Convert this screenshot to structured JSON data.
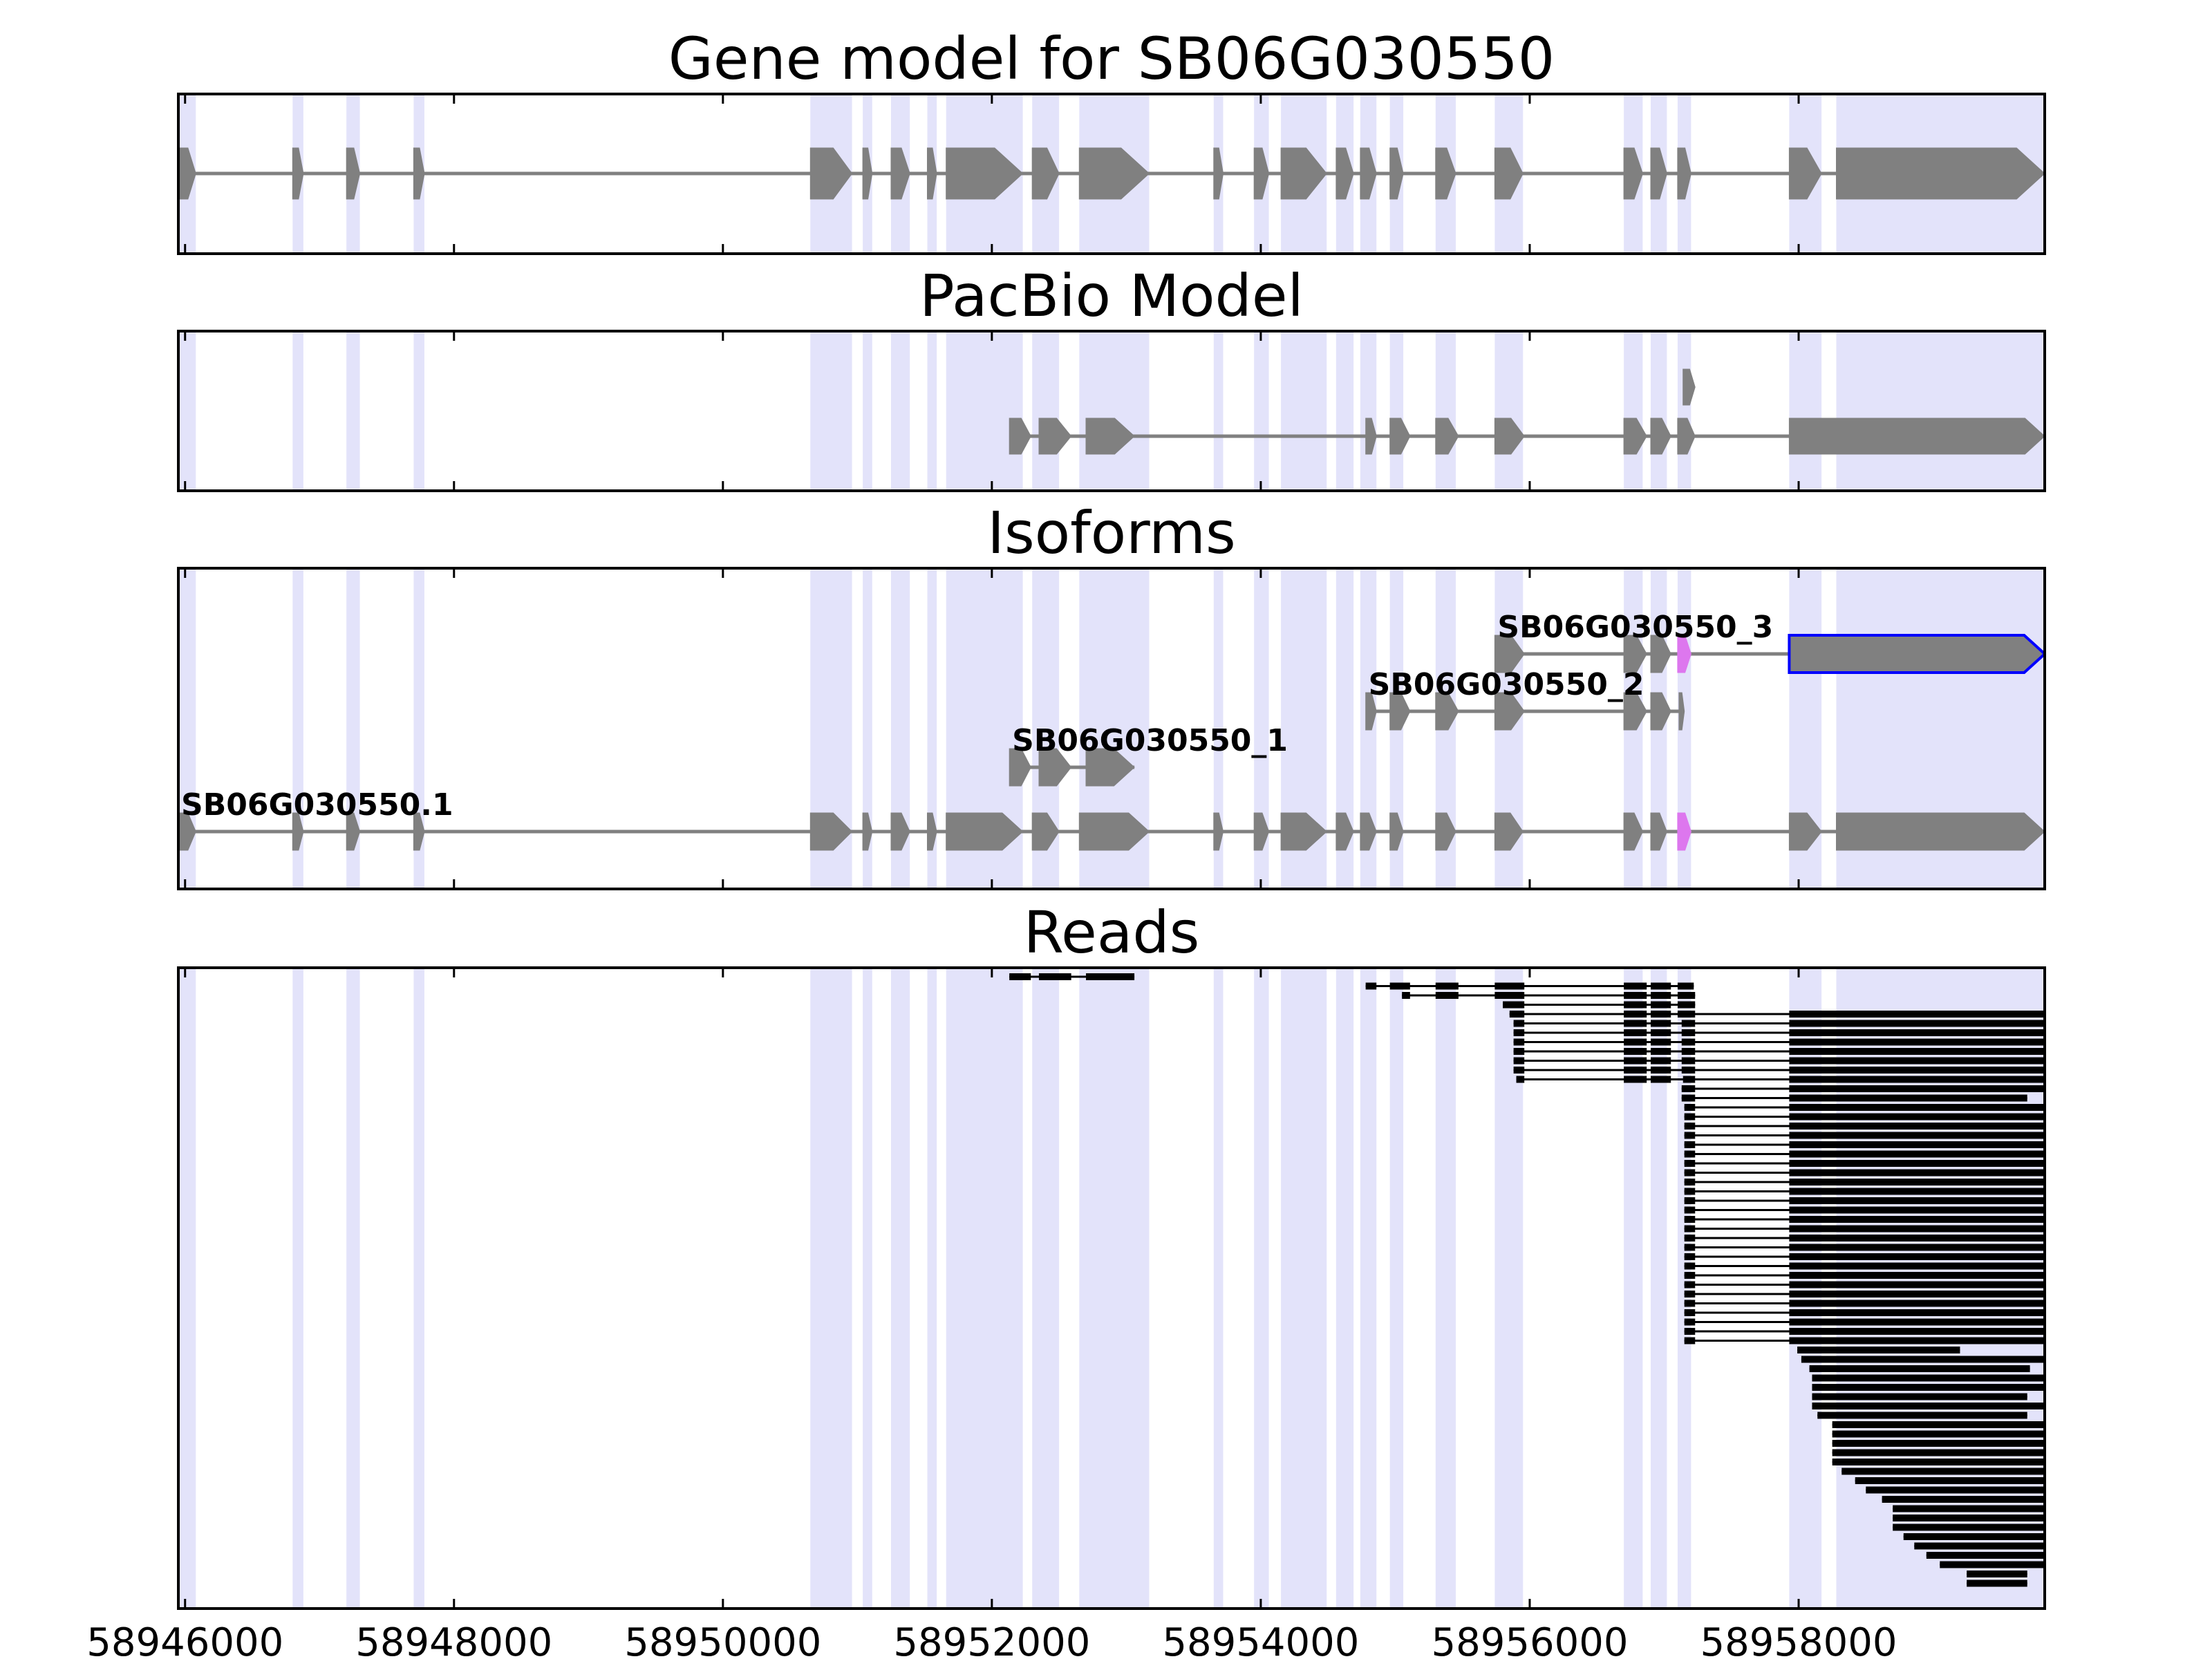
{
  "chart_data": {
    "type": "gene-track",
    "x_range": [
      58945950,
      58959830
    ],
    "x_ticks": [
      58946000,
      58948000,
      58950000,
      58952000,
      58954000,
      58956000,
      58958000
    ],
    "x_tick_labels": [
      "58946000",
      "58948000",
      "58950000",
      "58952000",
      "58954000",
      "58956000",
      "58958000"
    ],
    "shaded_regions": [
      [
        58945950,
        58946080
      ],
      [
        58946800,
        58946880
      ],
      [
        58947200,
        58947300
      ],
      [
        58947700,
        58947780
      ],
      [
        58950650,
        58950960
      ],
      [
        58951040,
        58951110
      ],
      [
        58951250,
        58951390
      ],
      [
        58951520,
        58951590
      ],
      [
        58951660,
        58952230
      ],
      [
        58952300,
        58952500
      ],
      [
        58952650,
        58953170
      ],
      [
        58953650,
        58953720
      ],
      [
        58953950,
        58954060
      ],
      [
        58954150,
        58954490
      ],
      [
        58954560,
        58954690
      ],
      [
        58954740,
        58954860
      ],
      [
        58954960,
        58955060
      ],
      [
        58955300,
        58955450
      ],
      [
        58955740,
        58955950
      ],
      [
        58956700,
        58956840
      ],
      [
        58956900,
        58957020
      ],
      [
        58957100,
        58957200
      ],
      [
        58957930,
        58958170
      ],
      [
        58958280,
        58959830
      ]
    ],
    "panels": [
      {
        "title": "Gene model for SB06G030550",
        "tracks": [
          {
            "start": 58945950,
            "end": 58959830,
            "color": "#808080",
            "exons": [
              [
                58945950,
                58946080
              ],
              [
                58946800,
                58946880
              ],
              [
                58947200,
                58947300
              ],
              [
                58947700,
                58947780
              ],
              [
                58950650,
                58950960
              ],
              [
                58951040,
                58951110
              ],
              [
                58951250,
                58951390
              ],
              [
                58951520,
                58951590
              ],
              [
                58951660,
                58952230
              ],
              [
                58952300,
                58952500
              ],
              [
                58952650,
                58953170
              ],
              [
                58953650,
                58953720
              ],
              [
                58953950,
                58954060
              ],
              [
                58954150,
                58954490
              ],
              [
                58954560,
                58954690
              ],
              [
                58954740,
                58954860
              ],
              [
                58954960,
                58955060
              ],
              [
                58955300,
                58955450
              ],
              [
                58955740,
                58955950
              ],
              [
                58956700,
                58956840
              ],
              [
                58956900,
                58957020
              ],
              [
                58957100,
                58957200
              ],
              [
                58957930,
                58958170
              ],
              [
                58958280,
                58959830
              ]
            ]
          }
        ]
      },
      {
        "title": "PacBio Model",
        "tracks": [
          {
            "start": 58952130,
            "end": 58959830,
            "color": "#808080",
            "exons": [
              [
                58952130,
                58952290
              ],
              [
                58952350,
                58952590
              ],
              [
                58952700,
                58953060
              ],
              [
                58954780,
                58954860
              ],
              [
                58954960,
                58955110
              ],
              [
                58955300,
                58955470
              ],
              [
                58955740,
                58955960
              ],
              [
                58956700,
                58956870
              ],
              [
                58956900,
                58957050
              ],
              [
                58957100,
                58957230
              ],
              [
                58957930,
                58959830
              ]
            ]
          }
        ]
      },
      {
        "title": "Isoforms",
        "isoforms": [
          {
            "label": "SB06G030550.1",
            "color": "#808080",
            "exons": [
              [
                58945950,
                58946080
              ],
              [
                58946800,
                58946880
              ],
              [
                58947200,
                58947300
              ],
              [
                58947700,
                58947780
              ],
              [
                58950650,
                58950960
              ],
              [
                58951040,
                58951110
              ],
              [
                58951250,
                58951390
              ],
              [
                58951520,
                58951590
              ],
              [
                58951660,
                58952230
              ],
              [
                58952300,
                58952500
              ],
              [
                58952650,
                58953170
              ],
              [
                58953650,
                58953720
              ],
              [
                58953950,
                58954060
              ],
              [
                58954150,
                58954490
              ],
              [
                58954560,
                58954690
              ],
              [
                58954740,
                58954860
              ],
              [
                58954960,
                58955060
              ],
              [
                58955300,
                58955450
              ],
              [
                58955740,
                58955950
              ],
              [
                58956700,
                58956840
              ],
              [
                58956900,
                58957020
              ],
              [
                58957100,
                58957200
              ],
              [
                58957930,
                58958170
              ],
              [
                58958280,
                58959830
              ]
            ],
            "highlight_exon": 21
          },
          {
            "label": "SB06G030550_1",
            "color": "#808080",
            "exons": [
              [
                58952130,
                58952290
              ],
              [
                58952350,
                58952590
              ],
              [
                58952700,
                58953060
              ]
            ]
          },
          {
            "label": "SB06G030550_2",
            "color": "#808080",
            "exons": [
              [
                58954780,
                58954860
              ],
              [
                58954960,
                58955110
              ],
              [
                58955300,
                58955470
              ],
              [
                58955740,
                58955960
              ],
              [
                58956700,
                58956870
              ],
              [
                58956900,
                58957050
              ],
              [
                58957110,
                58957150
              ]
            ]
          },
          {
            "label": "SB06G030550_3",
            "color": "#808080",
            "outline": "#0000ff",
            "exons": [
              [
                58955740,
                58955960
              ],
              [
                58956700,
                58956870
              ],
              [
                58956900,
                58957050
              ],
              [
                58957100,
                58957200
              ],
              [
                58957930,
                58959830
              ]
            ],
            "highlight_exon": 3,
            "outlined_exon": 4
          }
        ]
      },
      {
        "title": "Reads",
        "read_groups": [
          {
            "count": 1,
            "exons": [
              [
                58952130,
                58952290
              ],
              [
                58952350,
                58952590
              ],
              [
                58952700,
                58953060
              ]
            ]
          },
          {
            "count": 1,
            "exons": [
              [
                58954780,
                58954860
              ],
              [
                58954960,
                58955110
              ],
              [
                58955300,
                58955470
              ],
              [
                58955740,
                58955960
              ],
              [
                58956700,
                58956870
              ],
              [
                58956900,
                58957050
              ],
              [
                58957100,
                58957220
              ]
            ]
          },
          {
            "count": 1,
            "exons": [
              [
                58955050,
                58955110
              ],
              [
                58955300,
                58955470
              ],
              [
                58955740,
                58955960
              ],
              [
                58956700,
                58956870
              ],
              [
                58956900,
                58957050
              ],
              [
                58957100,
                58957230
              ]
            ]
          },
          {
            "count": 1,
            "exons": [
              [
                58955800,
                58955960
              ],
              [
                58956700,
                58956870
              ],
              [
                58956900,
                58957050
              ],
              [
                58957100,
                58957230
              ]
            ]
          },
          {
            "count": 1,
            "exons": [
              [
                58955850,
                58955960
              ],
              [
                58956700,
                58956870
              ],
              [
                58956900,
                58957050
              ],
              [
                58957100,
                58957230
              ],
              [
                58957930,
                58959830
              ]
            ]
          },
          {
            "count": 6,
            "exons": [
              [
                58955880,
                58955960
              ],
              [
                58956700,
                58956870
              ],
              [
                58956900,
                58957050
              ],
              [
                58957130,
                58957230
              ],
              [
                58957930,
                58959830
              ]
            ]
          },
          {
            "count": 1,
            "exons": [
              [
                58955900,
                58955960
              ],
              [
                58956700,
                58956870
              ],
              [
                58956900,
                58957050
              ],
              [
                58957140,
                58957230
              ],
              [
                58957930,
                58959830
              ]
            ]
          },
          {
            "count": 1,
            "exons": [
              [
                58957130,
                58957230
              ],
              [
                58957930,
                58959830
              ]
            ]
          },
          {
            "count": 1,
            "exons": [
              [
                58957130,
                58957230
              ],
              [
                58957930,
                58959700
              ]
            ]
          },
          {
            "count": 26,
            "exons": [
              [
                58957150,
                58957230
              ],
              [
                58957930,
                58959830
              ]
            ]
          },
          {
            "count": 1,
            "exons": [
              [
                58957990,
                58959200
              ]
            ]
          },
          {
            "count": 1,
            "exons": [
              [
                58958020,
                58959830
              ]
            ]
          },
          {
            "count": 1,
            "exons": [
              [
                58958080,
                58959720
              ]
            ]
          },
          {
            "count": 2,
            "exons": [
              [
                58958100,
                58959830
              ]
            ]
          },
          {
            "count": 1,
            "exons": [
              [
                58958100,
                58959700
              ]
            ]
          },
          {
            "count": 1,
            "exons": [
              [
                58958100,
                58959830
              ]
            ]
          },
          {
            "count": 1,
            "exons": [
              [
                58958140,
                58959700
              ]
            ]
          },
          {
            "count": 5,
            "exons": [
              [
                58958250,
                58959830
              ]
            ]
          },
          {
            "count": 1,
            "exons": [
              [
                58958320,
                58959830
              ]
            ]
          },
          {
            "count": 1,
            "exons": [
              [
                58958420,
                58959830
              ]
            ]
          },
          {
            "count": 1,
            "exons": [
              [
                58958500,
                58959830
              ]
            ]
          },
          {
            "count": 1,
            "exons": [
              [
                58958620,
                58959830
              ]
            ]
          },
          {
            "count": 3,
            "exons": [
              [
                58958700,
                58959830
              ]
            ]
          },
          {
            "count": 1,
            "exons": [
              [
                58958780,
                58959830
              ]
            ]
          },
          {
            "count": 1,
            "exons": [
              [
                58958860,
                58959830
              ]
            ]
          },
          {
            "count": 1,
            "exons": [
              [
                58958950,
                58959830
              ]
            ]
          },
          {
            "count": 1,
            "exons": [
              [
                58959050,
                58959830
              ]
            ]
          },
          {
            "count": 2,
            "exons": [
              [
                58959250,
                58959700
              ]
            ]
          }
        ]
      }
    ]
  }
}
